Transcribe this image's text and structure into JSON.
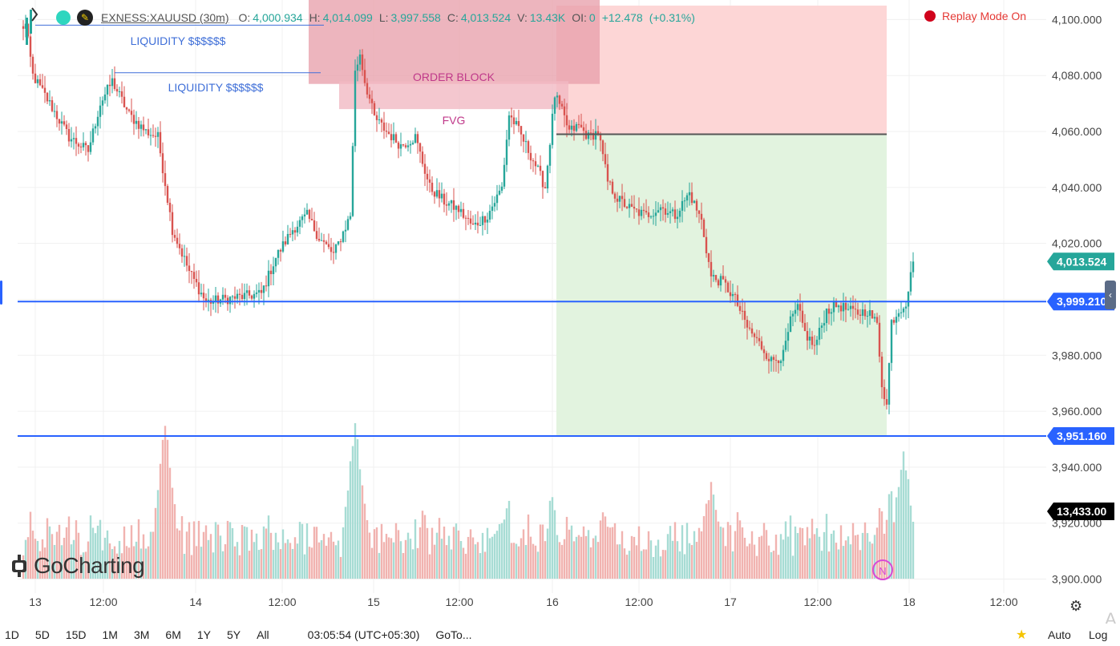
{
  "header": {
    "symbol": "EXNESS:XAUUSD (30m)",
    "o_label": "O:",
    "o_value": "4,000.934",
    "h_label": "H:",
    "h_value": "4,014.099",
    "l_label": "L:",
    "l_value": "3,997.558",
    "c_label": "C:",
    "c_value": "4,013.524",
    "v_label": "V:",
    "v_value": "13.43K",
    "oi_label": "OI:",
    "oi_value": "0",
    "change": "+12.478",
    "change_pct": "(+0.31%)"
  },
  "replay": {
    "label": "Replay Mode On"
  },
  "logo": {
    "text": "GoCharting"
  },
  "bottom_bar": {
    "timeframes": [
      "1D",
      "5D",
      "15D",
      "1M",
      "3M",
      "6M",
      "1Y",
      "5Y",
      "All"
    ],
    "clock": "03:05:54 (UTC+05:30)",
    "goto": "GoTo...",
    "auto": "Auto",
    "log": "Log",
    "watermark": "A"
  },
  "indicator_badge": "N",
  "chart_data": {
    "type": "candlestick",
    "instrument": "EXNESS:XAUUSD",
    "timeframe": "30m",
    "y_range": [
      3895,
      4107
    ],
    "y_ticks": [
      3900,
      3920,
      3940,
      3960,
      3980,
      4000,
      4020,
      4040,
      4060,
      4080,
      4100
    ],
    "y_tick_labels": [
      "3,900.000",
      "3,920.000",
      "3,940.000",
      "3,960.000",
      "3,980.000",
      "4,000.000",
      "4,020.000",
      "4,040.000",
      "4,060.000",
      "4,080.000",
      "4,100.000"
    ],
    "x_ticks": [
      "13",
      "12:00",
      "14",
      "12:00",
      "15",
      "12:00",
      "16",
      "12:00",
      "17",
      "12:00",
      "18",
      "12:00"
    ],
    "path_points": [
      [
        0,
        4097
      ],
      [
        2,
        4098
      ],
      [
        5,
        4080
      ],
      [
        12,
        4070
      ],
      [
        20,
        4058
      ],
      [
        28,
        4053
      ],
      [
        33,
        4070
      ],
      [
        38,
        4078
      ],
      [
        45,
        4066
      ],
      [
        52,
        4060
      ],
      [
        57,
        4058
      ],
      [
        63,
        4025
      ],
      [
        70,
        4010
      ],
      [
        77,
        3999
      ],
      [
        84,
        4000
      ],
      [
        92,
        4001
      ],
      [
        100,
        4002
      ],
      [
        106,
        4015
      ],
      [
        113,
        4025
      ],
      [
        119,
        4030
      ],
      [
        124,
        4022
      ],
      [
        130,
        4016
      ],
      [
        137,
        4030
      ],
      [
        139,
        4081
      ],
      [
        141,
        4088
      ],
      [
        143,
        4078
      ],
      [
        147,
        4065
      ],
      [
        152,
        4060
      ],
      [
        158,
        4055
      ],
      [
        164,
        4058
      ],
      [
        170,
        4040
      ],
      [
        176,
        4035
      ],
      [
        182,
        4032
      ],
      [
        188,
        4026
      ],
      [
        194,
        4030
      ],
      [
        200,
        4040
      ],
      [
        203,
        4066
      ],
      [
        206,
        4062
      ],
      [
        210,
        4055
      ],
      [
        214,
        4048
      ],
      [
        218,
        4040
      ],
      [
        222,
        4073
      ],
      [
        225,
        4067
      ],
      [
        228,
        4060
      ],
      [
        232,
        4062
      ],
      [
        236,
        4058
      ],
      [
        240,
        4060
      ],
      [
        244,
        4042
      ],
      [
        248,
        4036
      ],
      [
        254,
        4032
      ],
      [
        260,
        4030
      ],
      [
        266,
        4033
      ],
      [
        272,
        4030
      ],
      [
        278,
        4038
      ],
      [
        283,
        4028
      ],
      [
        287,
        4008
      ],
      [
        292,
        4006
      ],
      [
        297,
        4000
      ],
      [
        302,
        3990
      ],
      [
        308,
        3983
      ],
      [
        312,
        3978
      ],
      [
        317,
        3980
      ],
      [
        320,
        3992
      ],
      [
        323,
        3997
      ],
      [
        326,
        3988
      ],
      [
        330,
        3983
      ],
      [
        335,
        3996
      ],
      [
        340,
        3998
      ],
      [
        344,
        3996
      ],
      [
        348,
        3995
      ],
      [
        352,
        3996
      ],
      [
        356,
        3991
      ],
      [
        358,
        3970
      ],
      [
        360,
        3962
      ],
      [
        362,
        3992
      ],
      [
        365,
        3996
      ],
      [
        368,
        3999
      ],
      [
        371,
        4013
      ]
    ],
    "volume_peaks": [
      [
        60,
        5800
      ],
      [
        139,
        5800
      ],
      [
        287,
        3500
      ],
      [
        367,
        4800
      ]
    ],
    "annotations": {
      "liquidity_labels": [
        "LIQUIDITY $$$$$$",
        "LIQUIDITY $$$$$$"
      ],
      "order_block_label": "ORDER BLOCK",
      "fvg_label": "FVG",
      "liquidity_level_1": 4098,
      "liquidity_level_2": 4081,
      "order_block": [
        4077,
        4107
      ],
      "fvg": [
        4068,
        4078
      ],
      "risk_zone": [
        4059,
        4105
      ],
      "reward_zone": [
        3951,
        4059
      ],
      "position_entry": 4059
    },
    "horizontal_lines": [
      {
        "value": 3999.21,
        "label": "3,999.210",
        "color": "#2962ff"
      },
      {
        "value": 3951.16,
        "label": "3,951.160",
        "color": "#2962ff"
      }
    ],
    "price_labels": [
      {
        "value": 4013.524,
        "label": "4,013.524",
        "color": "#26a69a"
      },
      {
        "volume": 13433,
        "label": "13,433.00",
        "color": "#000000"
      }
    ],
    "colors": {
      "up": "#26a69a",
      "down": "#d9534f",
      "up_volume": "#a7dcd4",
      "down_volume": "#f1b3b0",
      "order_block": "#e8a0ac",
      "fvg": "#f1b9c3",
      "risk": "#fdd6d6",
      "reward": "#e2f3df"
    }
  }
}
